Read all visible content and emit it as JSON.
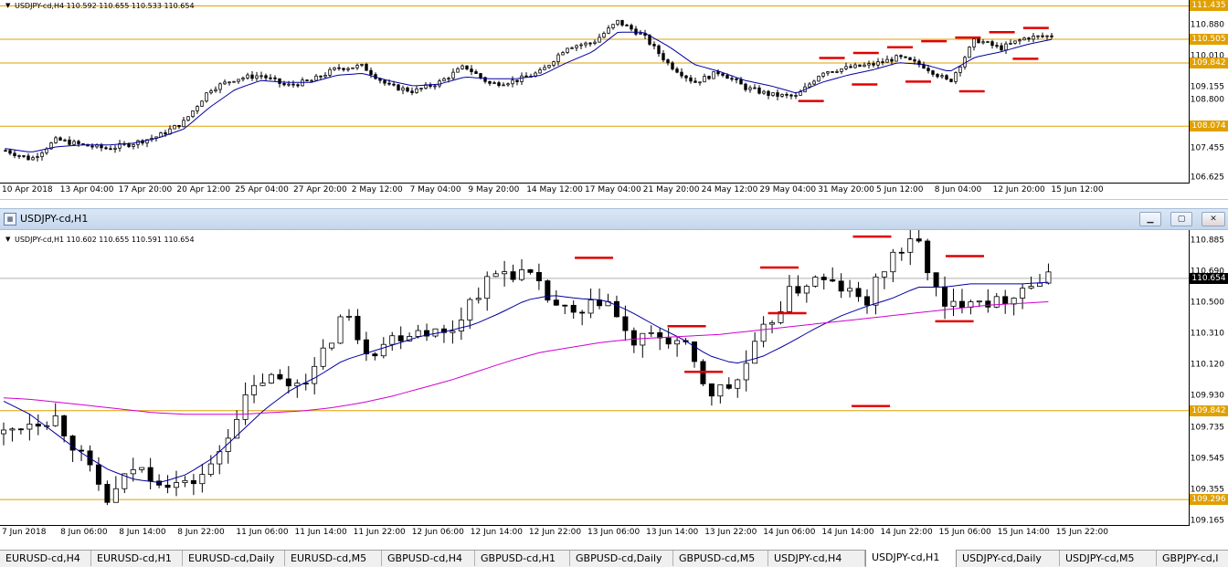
{
  "window": {
    "title": "USDJPY-cd,H1"
  },
  "colors": {
    "bull": "#ffffff",
    "bear": "#000000",
    "ma_fast": "#0000a0",
    "ma_slow": "#d000d0",
    "level": "#e0a000",
    "marker": "#e00000",
    "current": "#000000"
  },
  "chart_data": [
    {
      "type": "candlestick",
      "symbol": "USDJPY-cd,H4",
      "ohlc_header": "USDJPY-cd,H4  110.592 110.655 110.533 110.654",
      "ylim": [
        106.5,
        111.6
      ],
      "ytick_labels": [
        "111.435",
        "110.880",
        "110.505",
        "110.010",
        "109.842",
        "109.155",
        "108.800",
        "108.074",
        "107.455",
        "106.625"
      ],
      "ytick_values": [
        111.435,
        110.88,
        110.505,
        110.01,
        109.842,
        109.155,
        108.8,
        108.074,
        107.455,
        106.625
      ],
      "price_boxes": [
        {
          "value": 111.435,
          "label": "111.435",
          "kind": "level"
        },
        {
          "value": 110.505,
          "label": "110.505",
          "kind": "level"
        },
        {
          "value": 109.842,
          "label": "109.842",
          "kind": "level"
        },
        {
          "value": 108.074,
          "label": "108.074",
          "kind": "level"
        }
      ],
      "levels": [
        111.435,
        110.505,
        109.842,
        108.074
      ],
      "x_labels": [
        "10 Apr 2018",
        "13 Apr 04:00",
        "17 Apr 20:00",
        "20 Apr 12:00",
        "25 Apr 04:00",
        "27 Apr 20:00",
        "2 May 12:00",
        "7 May 04:00",
        "9 May 20:00",
        "14 May 12:00",
        "17 May 04:00",
        "21 May 20:00",
        "24 May 12:00",
        "29 May 04:00",
        "31 May 20:00",
        "5 Jun 12:00",
        "8 Jun 04:00",
        "12 Jun 20:00",
        "15 Jun 12:00"
      ],
      "close_path": [
        107.4,
        107.15,
        107.7,
        107.55,
        107.45,
        107.6,
        107.8,
        108.2,
        109.1,
        109.4,
        109.5,
        109.2,
        109.35,
        109.7,
        109.75,
        109.2,
        109.05,
        109.3,
        109.75,
        109.25,
        109.35,
        109.6,
        110.3,
        110.4,
        111.0,
        110.6,
        109.8,
        109.3,
        109.6,
        109.15,
        108.95,
        108.9,
        109.6,
        109.7,
        109.8,
        110.0,
        109.75,
        109.3,
        110.5,
        110.25,
        110.55,
        110.6
      ],
      "ma_path": [
        107.45,
        107.35,
        107.5,
        107.55,
        107.55,
        107.6,
        107.75,
        108.0,
        108.6,
        109.1,
        109.35,
        109.3,
        109.3,
        109.5,
        109.55,
        109.35,
        109.2,
        109.25,
        109.45,
        109.4,
        109.4,
        109.5,
        109.85,
        110.15,
        110.7,
        110.7,
        110.3,
        109.8,
        109.6,
        109.35,
        109.2,
        109.0,
        109.3,
        109.5,
        109.65,
        109.85,
        109.8,
        109.6,
        110.0,
        110.15,
        110.35,
        110.5
      ],
      "resistance_marks": [
        109.98,
        110.12,
        110.28,
        110.45,
        110.55,
        110.7,
        110.82
      ],
      "support_marks": [
        108.78,
        109.24,
        109.32,
        109.05,
        109.96
      ]
    },
    {
      "type": "candlestick",
      "symbol": "USDJPY-cd,H1",
      "ohlc_header": "USDJPY-cd,H1  110.602 110.655 110.591 110.654",
      "ylim": [
        109.14,
        110.95
      ],
      "ytick_labels": [
        "110.885",
        "110.690",
        "110.500",
        "110.310",
        "110.120",
        "109.930",
        "109.735",
        "109.545",
        "109.355",
        "109.165"
      ],
      "ytick_values": [
        110.885,
        110.69,
        110.5,
        110.31,
        110.12,
        109.93,
        109.735,
        109.545,
        109.355,
        109.165
      ],
      "price_boxes": [
        {
          "value": 110.654,
          "label": "110.654",
          "kind": "current"
        },
        {
          "value": 109.842,
          "label": "109.842",
          "kind": "level"
        },
        {
          "value": 109.296,
          "label": "109.296",
          "kind": "level"
        }
      ],
      "levels": [
        109.842,
        109.296
      ],
      "x_labels": [
        "7 Jun 2018",
        "8 Jun 06:00",
        "8 Jun 14:00",
        "8 Jun 22:00",
        "11 Jun 06:00",
        "11 Jun 14:00",
        "11 Jun 22:00",
        "12 Jun 06:00",
        "12 Jun 14:00",
        "12 Jun 22:00",
        "13 Jun 06:00",
        "13 Jun 14:00",
        "13 Jun 22:00",
        "14 Jun 06:00",
        "14 Jun 14:00",
        "14 Jun 22:00",
        "15 Jun 06:00",
        "15 Jun 14:00",
        "15 Jun 22:00"
      ],
      "close_path": [
        109.7,
        109.78,
        109.8,
        109.55,
        109.28,
        109.5,
        109.42,
        109.38,
        109.5,
        109.85,
        110.05,
        110.0,
        110.1,
        110.45,
        110.2,
        110.3,
        110.35,
        110.3,
        110.55,
        110.7,
        110.68,
        110.5,
        110.4,
        110.55,
        110.25,
        110.3,
        110.25,
        109.95,
        110.0,
        110.3,
        110.55,
        110.65,
        110.6,
        110.5,
        110.8,
        110.88,
        110.45,
        110.55,
        110.5,
        110.6,
        110.65
      ],
      "ma_fast_path": [
        109.9,
        109.82,
        109.7,
        109.58,
        109.48,
        109.42,
        109.4,
        109.45,
        109.55,
        109.7,
        109.85,
        109.97,
        110.05,
        110.15,
        110.2,
        110.25,
        110.3,
        110.33,
        110.37,
        110.44,
        110.52,
        110.55,
        110.53,
        110.52,
        110.45,
        110.36,
        110.28,
        110.18,
        110.13,
        110.17,
        110.25,
        110.34,
        110.42,
        110.48,
        110.53,
        110.6,
        110.6,
        110.62,
        110.62,
        110.62,
        110.63
      ],
      "ma_slow_path": [
        109.92,
        109.91,
        109.89,
        109.87,
        109.85,
        109.83,
        109.82,
        109.82,
        109.82,
        109.83,
        109.84,
        109.86,
        109.89,
        109.93,
        109.98,
        110.03,
        110.09,
        110.15,
        110.2,
        110.23,
        110.26,
        110.28,
        110.29,
        110.3,
        110.31,
        110.33,
        110.35,
        110.37,
        110.39,
        110.41,
        110.43,
        110.45,
        110.47,
        110.49,
        110.5,
        110.51
      ],
      "resistance_marks": [
        110.78,
        110.36,
        110.72,
        110.91,
        110.79
      ],
      "support_marks": [
        110.08,
        110.44,
        109.87,
        110.39
      ]
    }
  ],
  "tabs": [
    {
      "label": "EURUSD-cd,H4",
      "active": false
    },
    {
      "label": "EURUSD-cd,H1",
      "active": false
    },
    {
      "label": "EURUSD-cd,Daily",
      "active": false
    },
    {
      "label": "EURUSD-cd,M5",
      "active": false
    },
    {
      "label": "GBPUSD-cd,H4",
      "active": false
    },
    {
      "label": "GBPUSD-cd,H1",
      "active": false
    },
    {
      "label": "GBPUSD-cd,Daily",
      "active": false
    },
    {
      "label": "GBPUSD-cd,M5",
      "active": false
    },
    {
      "label": "USDJPY-cd,H4",
      "active": false
    },
    {
      "label": "USDJPY-cd,H1",
      "active": true
    },
    {
      "label": "USDJPY-cd,Daily",
      "active": false
    },
    {
      "label": "USDJPY-cd,M5",
      "active": false
    },
    {
      "label": "GBPJPY-cd,I",
      "active": false
    }
  ]
}
